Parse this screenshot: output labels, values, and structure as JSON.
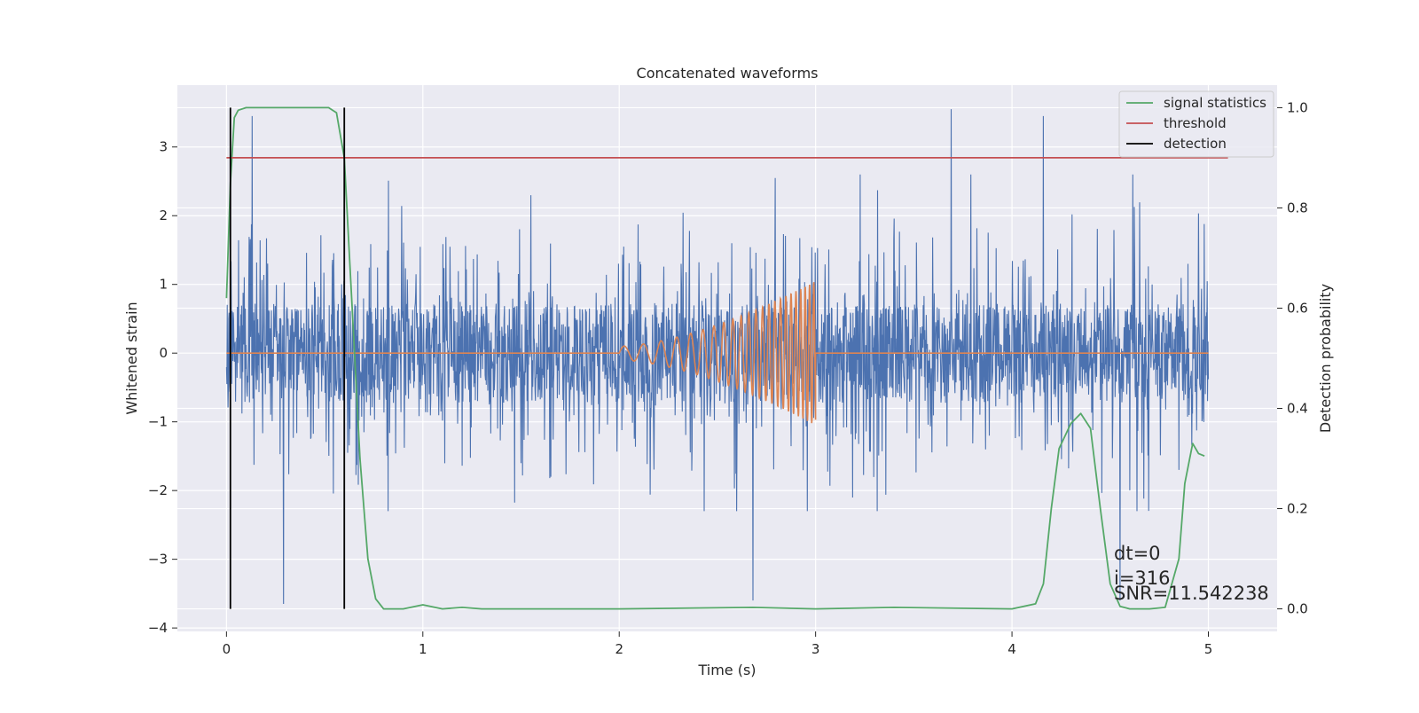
{
  "chart_data": {
    "type": "line",
    "title": "Concatenated waveforms",
    "xlabel": "Time (s)",
    "ylabel": "Whitened strain",
    "y2label": "Detection probability",
    "xlim": [
      -0.25,
      5.35
    ],
    "ylim": [
      -4.05,
      3.9
    ],
    "y2lim": [
      -0.045,
      1.045
    ],
    "xticks": [
      0,
      1,
      2,
      3,
      4,
      5
    ],
    "xtick_labels": [
      "0",
      "1",
      "2",
      "3",
      "4",
      "5"
    ],
    "yticks": [
      -4,
      -3,
      -2,
      -1,
      0,
      1,
      2,
      3
    ],
    "ytick_labels": [
      "−4",
      "−3",
      "−2",
      "−1",
      "0",
      "1",
      "2",
      "3"
    ],
    "y2ticks": [
      0.0,
      0.2,
      0.4,
      0.6,
      0.8,
      1.0
    ],
    "y2tick_labels": [
      "0.0",
      "0.2",
      "0.4",
      "0.6",
      "0.8",
      "1.0"
    ],
    "grid": true,
    "legend_position": "top-right",
    "series": [
      {
        "kind": "noisy-strain",
        "axis": "left",
        "color": "#4c72b0",
        "x_range": [
          0,
          5
        ],
        "core_amplitude": 0.72,
        "typical_excursion": [
          -2.3,
          2.6
        ],
        "notable_spikes": [
          [
            0.13,
            3.45
          ],
          [
            0.29,
            -3.65
          ],
          [
            2.68,
            -3.6
          ],
          [
            3.69,
            3.55
          ],
          [
            4.55,
            -3.6
          ],
          [
            4.16,
            3.45
          ]
        ]
      },
      {
        "kind": "injected-chirp",
        "axis": "left",
        "color": "#dd8452",
        "x_range": [
          2,
          3
        ],
        "baseline": 0,
        "baseline_x_range": [
          0,
          5
        ],
        "amplitude_start": 0.1,
        "amplitude_end": 1.05,
        "freq_start_hz": 10,
        "freq_end_hz": 48
      },
      {
        "name": "signal statistics",
        "axis": "right",
        "color": "#55a868",
        "x": [
          0,
          0.02,
          0.04,
          0.06,
          0.1,
          0.2,
          0.4,
          0.52,
          0.56,
          0.6,
          0.64,
          0.68,
          0.72,
          0.76,
          0.8,
          0.9,
          1.0,
          1.1,
          1.2,
          1.3,
          2.0,
          2.68,
          3.0,
          3.4,
          4.0,
          4.12,
          4.16,
          4.2,
          4.24,
          4.3,
          4.35,
          4.4,
          4.45,
          4.5,
          4.55,
          4.6,
          4.7,
          4.78,
          4.85,
          4.88,
          4.92,
          4.95,
          4.98
        ],
        "values": [
          0.62,
          0.85,
          0.98,
          0.995,
          1.0,
          1.0,
          1.0,
          1.0,
          0.99,
          0.9,
          0.6,
          0.3,
          0.1,
          0.02,
          0.0,
          0.0,
          0.008,
          0.0,
          0.003,
          0.0,
          0.0,
          0.003,
          0.0,
          0.003,
          0.0,
          0.01,
          0.05,
          0.2,
          0.32,
          0.37,
          0.39,
          0.36,
          0.2,
          0.05,
          0.005,
          0.0,
          0.0,
          0.003,
          0.1,
          0.25,
          0.33,
          0.31,
          0.305
        ]
      },
      {
        "name": "threshold",
        "axis": "right",
        "color": "#c44e52",
        "x": [
          0,
          5.1
        ],
        "values": [
          0.9,
          0.9
        ]
      },
      {
        "name": "detection",
        "axis": "right",
        "color": "#000000",
        "vlines": [
          0.02,
          0.6
        ],
        "y_range": [
          0.0,
          1.0
        ]
      }
    ],
    "annotations": [
      "dt=0",
      "i=316",
      "SNR=11.542238"
    ]
  }
}
